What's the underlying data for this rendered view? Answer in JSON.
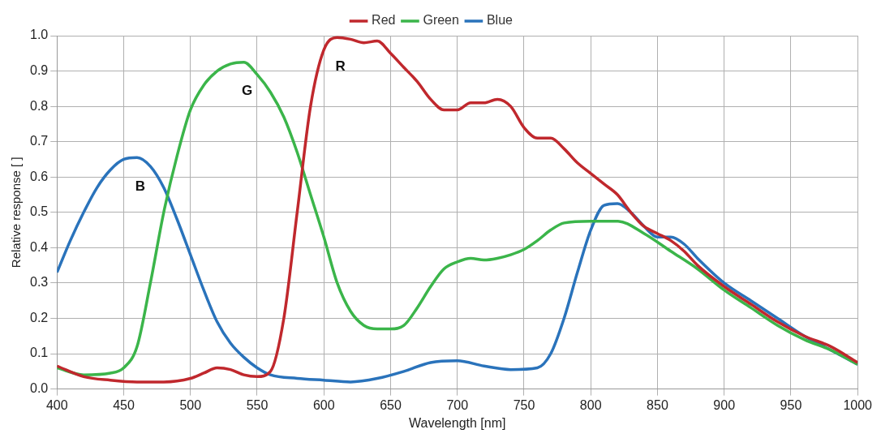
{
  "chart_data": {
    "type": "line",
    "xlabel": "Wavelength [nm]",
    "ylabel": "Relative response [ ]",
    "xlim": [
      400,
      1000
    ],
    "ylim": [
      0,
      1
    ],
    "xticks": [
      400,
      450,
      500,
      550,
      600,
      650,
      700,
      750,
      800,
      850,
      900,
      950,
      1000
    ],
    "yticks": [
      {
        "value": 0,
        "label": "0.0"
      },
      0.1,
      0.2,
      0.3,
      0.4,
      0.5,
      0.6,
      0.7,
      0.8,
      0.9,
      {
        "value": 1,
        "label": "1.0"
      }
    ],
    "grid": true,
    "legend": "top",
    "marker": "none",
    "line_style": "solid",
    "series": [
      {
        "name": "Red",
        "color": "#c0282d",
        "x": [
          400,
          420,
          440,
          460,
          480,
          500,
          510,
          520,
          530,
          540,
          550,
          560,
          570,
          580,
          590,
          600,
          610,
          620,
          630,
          640,
          650,
          660,
          670,
          680,
          690,
          700,
          710,
          720,
          730,
          740,
          750,
          760,
          770,
          780,
          790,
          800,
          810,
          820,
          830,
          840,
          850,
          860,
          870,
          880,
          900,
          920,
          940,
          960,
          980,
          1000
        ],
        "values": [
          0.065,
          0.035,
          0.025,
          0.02,
          0.02,
          0.03,
          0.045,
          0.06,
          0.055,
          0.04,
          0.035,
          0.05,
          0.2,
          0.5,
          0.8,
          0.96,
          0.995,
          0.99,
          0.98,
          0.985,
          0.95,
          0.91,
          0.87,
          0.82,
          0.79,
          0.79,
          0.81,
          0.81,
          0.82,
          0.8,
          0.74,
          0.71,
          0.71,
          0.68,
          0.64,
          0.61,
          0.58,
          0.55,
          0.5,
          0.46,
          0.44,
          0.42,
          0.39,
          0.35,
          0.29,
          0.24,
          0.19,
          0.15,
          0.12,
          0.075
        ]
      },
      {
        "name": "Green",
        "color": "#3bb54a",
        "x": [
          400,
          420,
          440,
          450,
          460,
          470,
          480,
          490,
          500,
          510,
          520,
          530,
          540,
          550,
          560,
          570,
          580,
          590,
          600,
          610,
          620,
          630,
          640,
          650,
          660,
          670,
          680,
          690,
          700,
          710,
          720,
          730,
          740,
          750,
          760,
          770,
          780,
          800,
          820,
          840,
          860,
          880,
          900,
          920,
          940,
          960,
          980,
          1000
        ],
        "values": [
          0.06,
          0.04,
          0.045,
          0.06,
          0.12,
          0.3,
          0.5,
          0.66,
          0.79,
          0.86,
          0.9,
          0.92,
          0.925,
          0.89,
          0.84,
          0.77,
          0.67,
          0.55,
          0.43,
          0.3,
          0.22,
          0.18,
          0.17,
          0.17,
          0.18,
          0.23,
          0.29,
          0.34,
          0.36,
          0.37,
          0.365,
          0.37,
          0.38,
          0.395,
          0.42,
          0.45,
          0.47,
          0.475,
          0.475,
          0.44,
          0.39,
          0.34,
          0.28,
          0.23,
          0.18,
          0.14,
          0.11,
          0.07
        ]
      },
      {
        "name": "Blue",
        "color": "#2a73bb",
        "x": [
          400,
          410,
          420,
          430,
          440,
          450,
          460,
          470,
          480,
          490,
          500,
          510,
          520,
          530,
          540,
          550,
          560,
          580,
          600,
          620,
          640,
          660,
          680,
          700,
          720,
          740,
          760,
          770,
          780,
          790,
          800,
          810,
          820,
          830,
          840,
          850,
          860,
          870,
          880,
          900,
          920,
          940,
          960,
          980,
          1000
        ],
        "values": [
          0.33,
          0.42,
          0.5,
          0.57,
          0.62,
          0.65,
          0.655,
          0.63,
          0.57,
          0.48,
          0.38,
          0.28,
          0.19,
          0.13,
          0.09,
          0.06,
          0.04,
          0.03,
          0.025,
          0.02,
          0.03,
          0.05,
          0.075,
          0.08,
          0.065,
          0.055,
          0.06,
          0.1,
          0.2,
          0.33,
          0.45,
          0.52,
          0.525,
          0.5,
          0.46,
          0.43,
          0.43,
          0.41,
          0.37,
          0.3,
          0.25,
          0.2,
          0.15,
          0.11,
          0.07
        ]
      }
    ],
    "annotations": [
      "R",
      "G",
      "B"
    ]
  }
}
